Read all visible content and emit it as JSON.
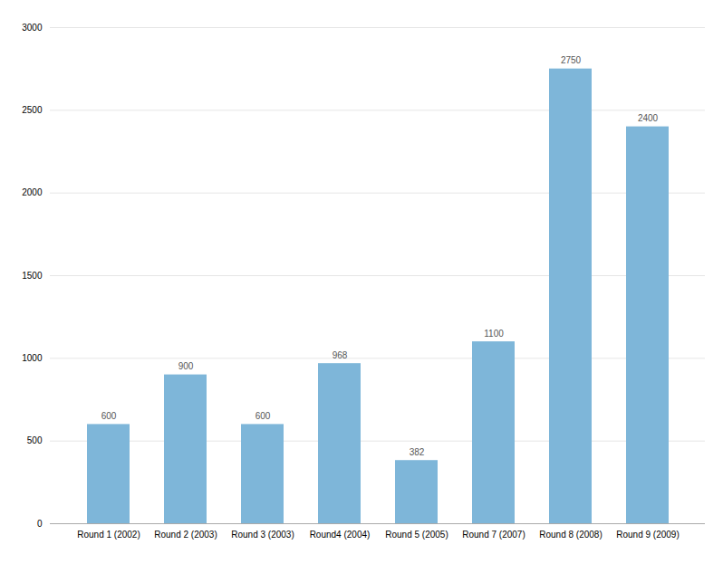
{
  "chart_data": {
    "type": "bar",
    "categories": [
      "Round 1 (2002)",
      "Round 2 (2003)",
      "Round 3 (2003)",
      "Round4 (2004)",
      "Round 5 (2005)",
      "Round 7 (2007)",
      "Round 8 (2008)",
      "Round 9 (2009)"
    ],
    "values": [
      600,
      900,
      600,
      968,
      382,
      1100,
      2750,
      2400
    ],
    "color": "#7EB6D9",
    "ylim": [
      0,
      3000
    ],
    "yticks": [
      0,
      500,
      1000,
      1500,
      2000,
      2500,
      3000
    ],
    "grid": true,
    "data_labels": true
  }
}
